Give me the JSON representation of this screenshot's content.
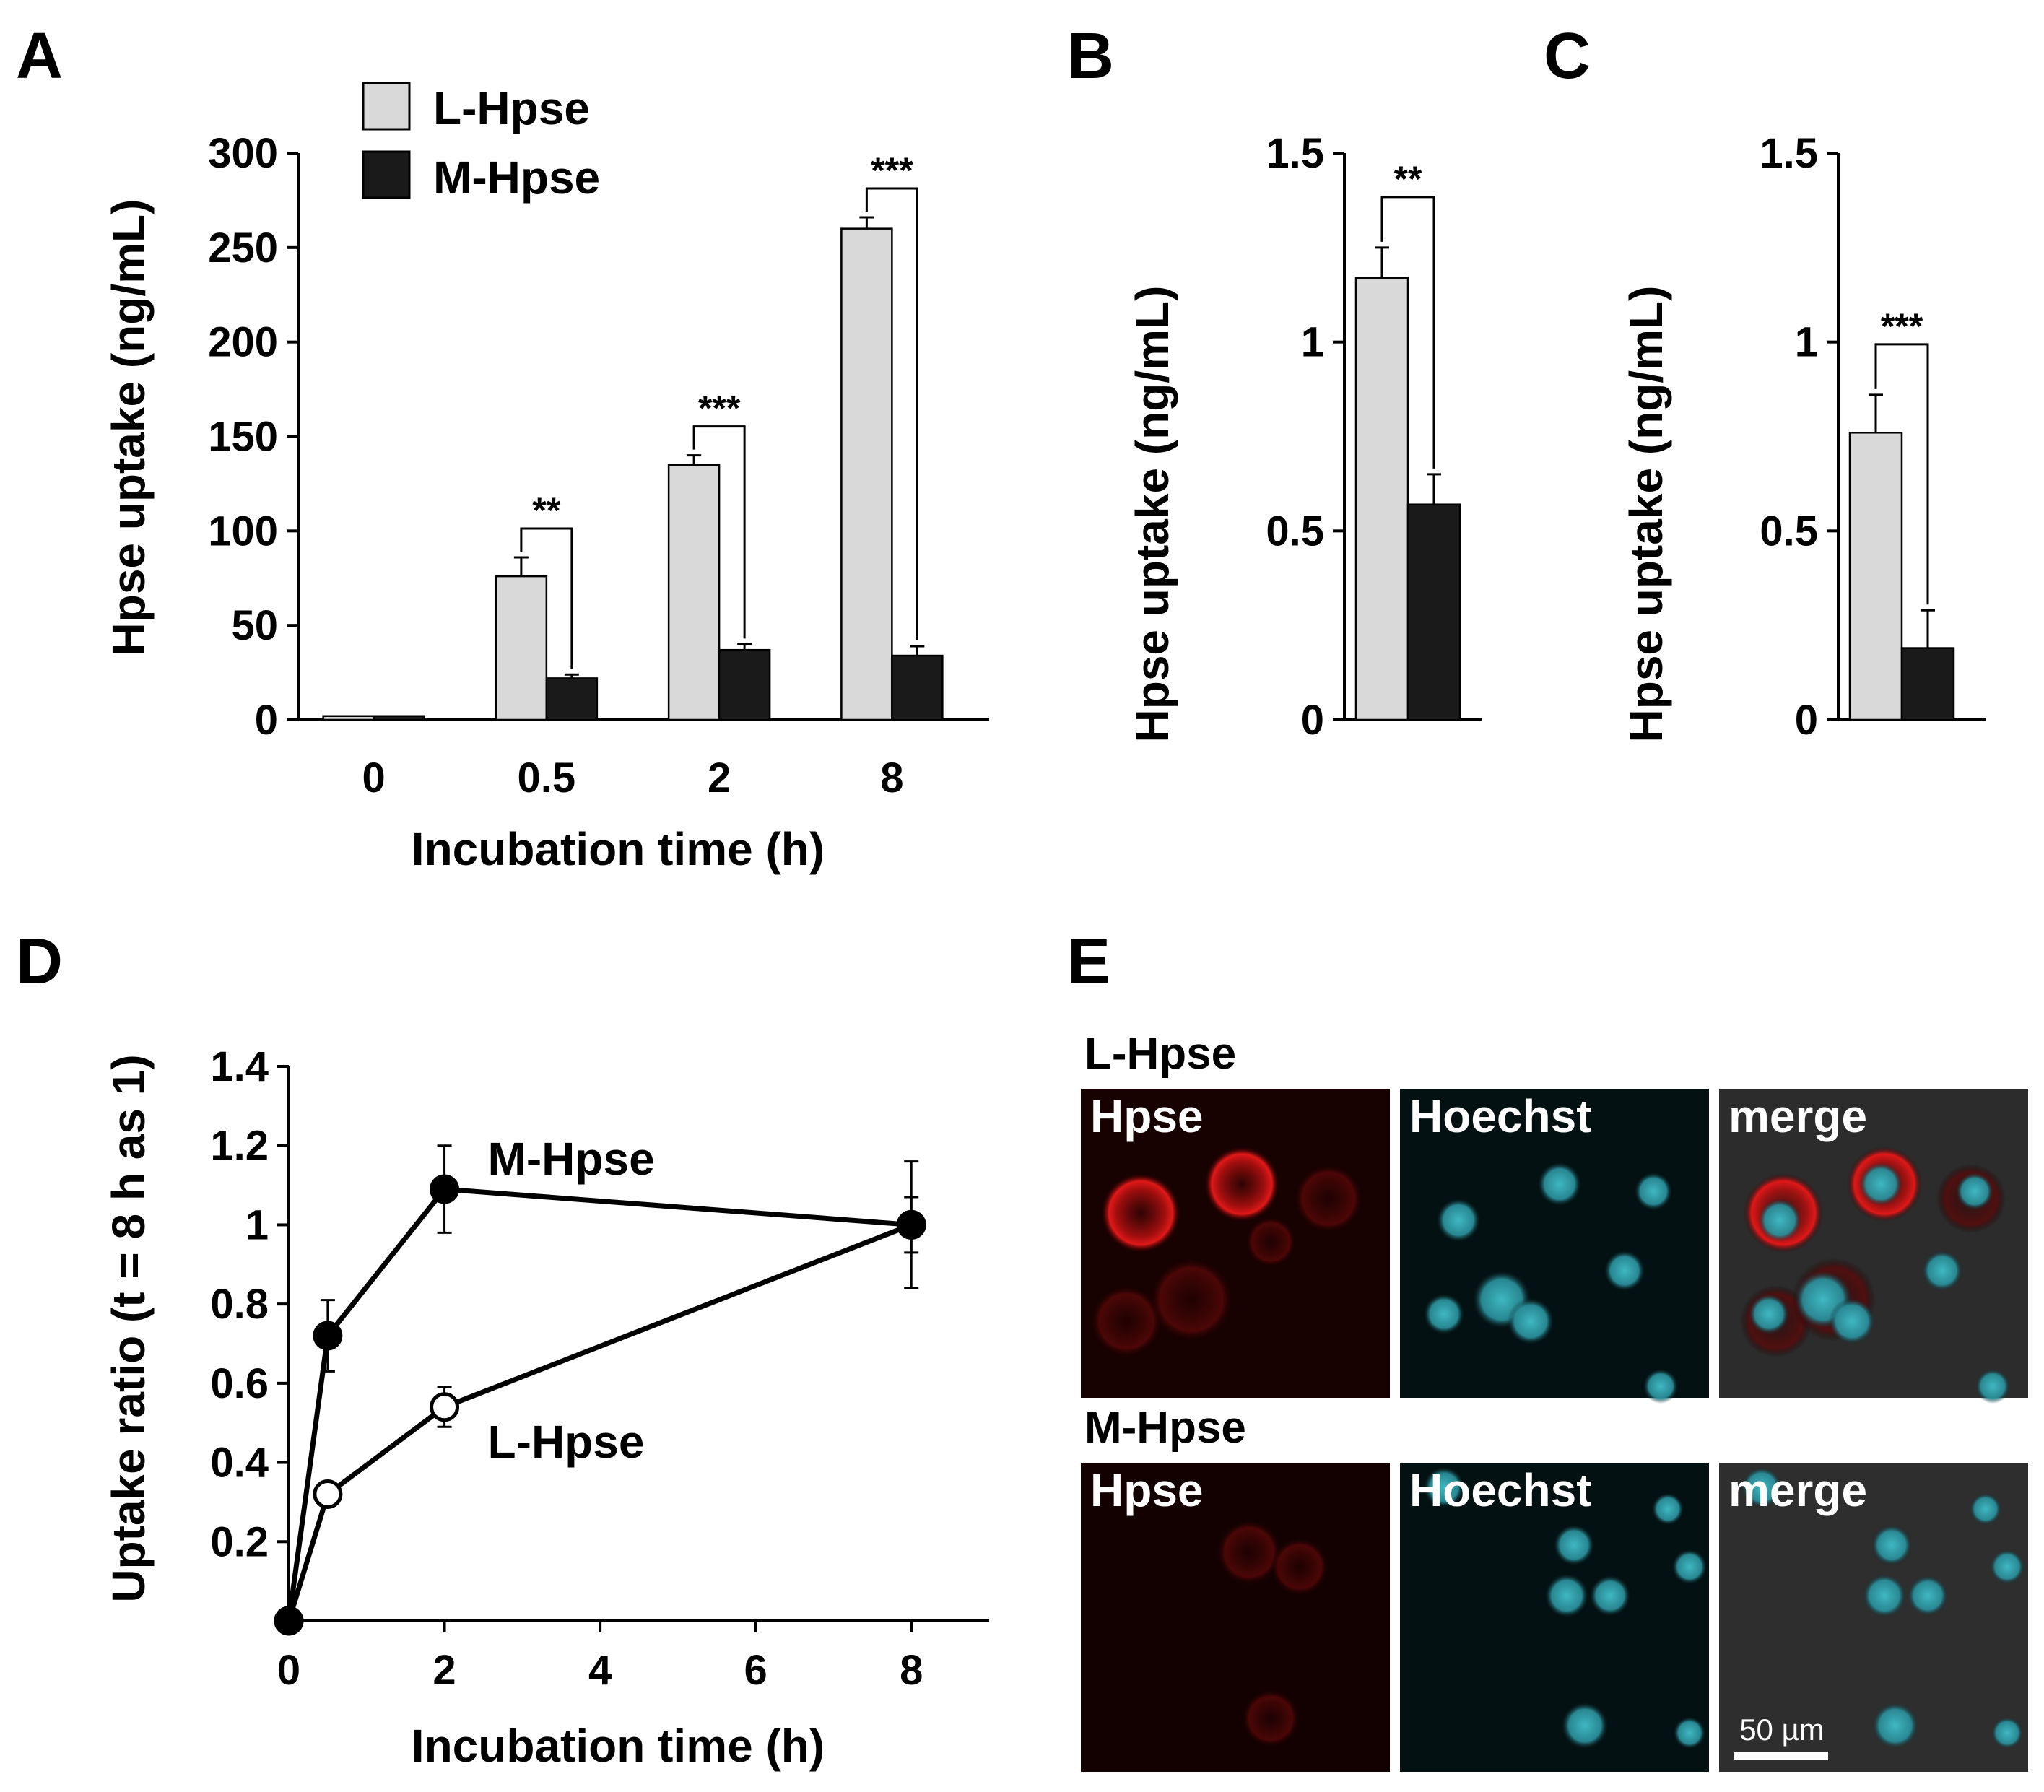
{
  "panel_letters": {
    "A": "A",
    "B": "B",
    "C": "C",
    "D": "D",
    "E": "E"
  },
  "colors": {
    "l_hpse": "#d9d9d9",
    "m_hpse": "#1a1a1a",
    "text": "#000000"
  },
  "chart_data": [
    {
      "id": "A",
      "type": "bar",
      "categories": [
        "0",
        "0.5",
        "2",
        "8"
      ],
      "series": [
        {
          "name": "L-Hpse",
          "values": [
            2,
            76,
            135,
            260
          ],
          "errors": [
            0,
            10,
            5,
            6
          ]
        },
        {
          "name": "M-Hpse",
          "values": [
            2,
            22,
            37,
            34
          ],
          "errors": [
            0,
            2,
            3,
            5
          ]
        }
      ],
      "yticks": [
        "0",
        "50",
        "100",
        "150",
        "200",
        "250",
        "300"
      ],
      "ylim": [
        0,
        300
      ],
      "xlabel": "Incubation time (h)",
      "ylabel": "Hpse uptake (ng/mL)",
      "legend": [
        "L-Hpse",
        "M-Hpse"
      ],
      "legend_position": "top-left",
      "significance": [
        {
          "category": 1,
          "label": "**"
        },
        {
          "category": 2,
          "label": "***"
        },
        {
          "category": 3,
          "label": "***"
        }
      ]
    },
    {
      "id": "B",
      "type": "bar",
      "categories": [
        "L-Hpse",
        "M-Hpse"
      ],
      "values": [
        1.17,
        0.57
      ],
      "errors": [
        0.08,
        0.08
      ],
      "yticks": [
        "0",
        "0.5",
        "1",
        "1.5"
      ],
      "ylim": [
        0,
        1.5
      ],
      "ylabel": "Hpse uptake (ng/mL)",
      "significance": "**"
    },
    {
      "id": "C",
      "type": "bar",
      "categories": [
        "L-Hpse",
        "M-Hpse"
      ],
      "values": [
        0.76,
        0.19
      ],
      "errors": [
        0.1,
        0.1
      ],
      "yticks": [
        "0",
        "0.5",
        "1",
        "1.5"
      ],
      "ylim": [
        0,
        1.5
      ],
      "ylabel": "Hpse uptake (ng/mL)",
      "significance": "***"
    },
    {
      "id": "D",
      "type": "line",
      "series": [
        {
          "name": "M-Hpse",
          "x": [
            0,
            0.5,
            2,
            8
          ],
          "y": [
            0.0,
            0.72,
            1.09,
            1.0
          ],
          "errors": [
            0,
            0.09,
            0.11,
            0.16
          ],
          "marker": "filled"
        },
        {
          "name": "L-Hpse",
          "x": [
            0,
            0.5,
            2,
            8
          ],
          "y": [
            0.0,
            0.32,
            0.54,
            1.0
          ],
          "errors": [
            0,
            0.03,
            0.05,
            0.07
          ],
          "marker": "open"
        }
      ],
      "xticks": [
        "0",
        "2",
        "4",
        "6",
        "8"
      ],
      "yticks": [
        "0.2",
        "0.4",
        "0.6",
        "0.8",
        "1",
        "1.2",
        "1.4"
      ],
      "xlim": [
        0,
        9
      ],
      "ylim": [
        0,
        1.4
      ],
      "xlabel": "Incubation time (h)",
      "ylabel": "Uptake ratio (t = 8 h as 1)"
    }
  ],
  "micrographs": {
    "rows": [
      {
        "label": "L-Hpse",
        "channels": [
          "Hpse",
          "Hoechst",
          "merge"
        ]
      },
      {
        "label": "M-Hpse",
        "channels": [
          "Hpse",
          "Hoechst",
          "merge"
        ]
      }
    ],
    "scale_bar": "50 µm"
  }
}
